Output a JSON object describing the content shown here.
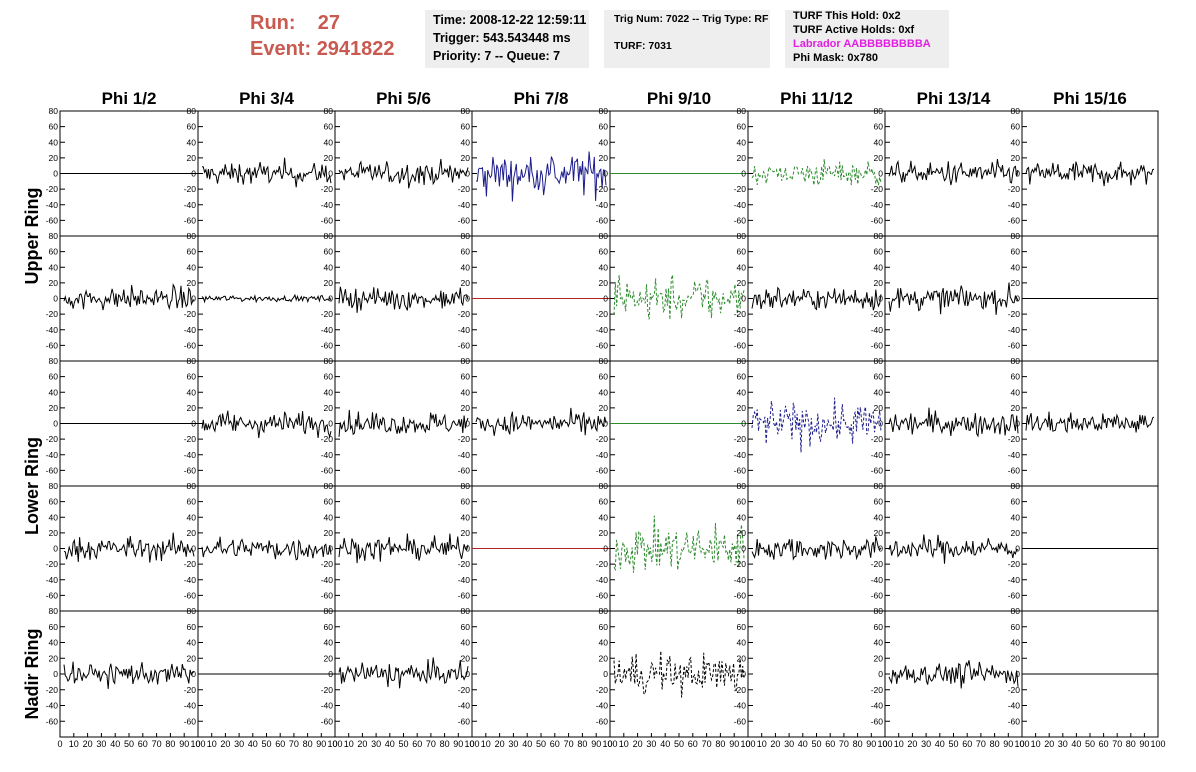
{
  "header": {
    "run_label": "Run:",
    "run_value": "27",
    "event_label": "Event:",
    "event_value": "2941822"
  },
  "info_panel_1": {
    "time": "Time: 2008-12-22 12:59:11",
    "trigger": "Trigger: 543.543448 ms",
    "priority": "Priority: 7 -- Queue: 7"
  },
  "info_panel_2": {
    "trig": "Trig Num: 7022 -- Trig Type: RF",
    "turf": "TURF: 7031"
  },
  "info_panel_3": {
    "hold": "TURF This Hold: 0x2",
    "active": "TURF Active Holds: 0xf",
    "labrador": "Labrador AABBBBBBBBA",
    "phimask": "Phi Mask: 0x780"
  },
  "colors": {
    "header_red": "#c85a50",
    "labrador_magenta": "#e020e0",
    "trace_black": "#000000",
    "trace_blue": "#1c1c8c",
    "trace_green": "#2e8b2e",
    "trace_red": "#b22222"
  },
  "chart_data": {
    "type": "line",
    "columns": [
      "Phi 1/2",
      "Phi 3/4",
      "Phi 5/6",
      "Phi 7/8",
      "Phi 9/10",
      "Phi 11/12",
      "Phi 13/14",
      "Phi 15/16"
    ],
    "row_groups": [
      "Upper Ring",
      "Lower Ring",
      "Nadir Ring"
    ],
    "ylim": [
      -80,
      80
    ],
    "y_ticks": [
      -60,
      -40,
      -20,
      0,
      20,
      40,
      60,
      80
    ],
    "xlim": [
      0,
      100
    ],
    "x_ticks": [
      0,
      10,
      20,
      30,
      40,
      50,
      60,
      70,
      80,
      90,
      100
    ],
    "x_tick_labels": [
      "0",
      "10",
      "20",
      "30",
      "40",
      "50",
      "60",
      "70",
      "80",
      "90",
      "100"
    ],
    "grid": false,
    "panels": [
      [
        "flat",
        "noise",
        "noise",
        "blue",
        "flat-green",
        "green",
        "noise",
        "noise"
      ],
      [
        "noise",
        "small",
        "noise",
        "flat-red",
        "green-big",
        "noise",
        "noise",
        "flat"
      ],
      [
        "flat",
        "noise",
        "noise",
        "noise",
        "flat-green",
        "blue",
        "noise",
        "noise"
      ],
      [
        "noise",
        "noise",
        "noise",
        "flat-red",
        "green-big",
        "noise",
        "noise",
        "flat"
      ],
      [
        "noise",
        "flat",
        "noise",
        "empty",
        "black-dash",
        "empty",
        "noise",
        "flat"
      ]
    ]
  }
}
